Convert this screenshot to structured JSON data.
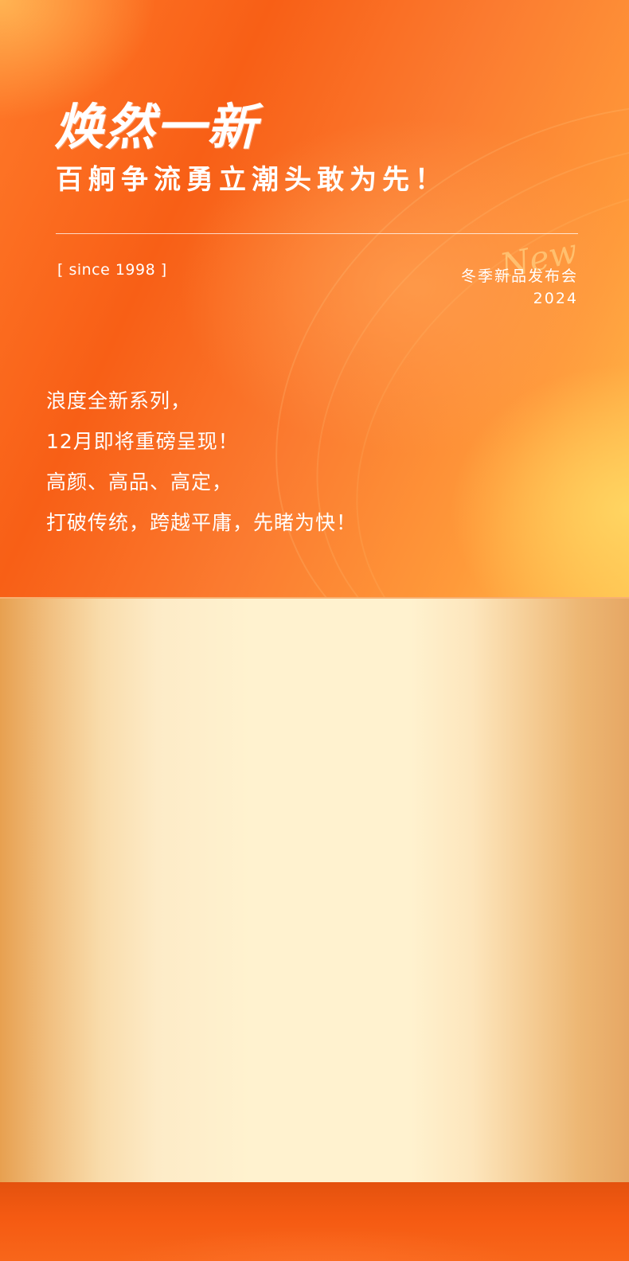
{
  "hero": {
    "title": "焕然一新",
    "subtitle": "百舸争流勇立潮头敢为先！",
    "since": "[ since 1998 ]",
    "event_title": "冬季新品发布会",
    "event_year": "2024",
    "script_mark": "New"
  },
  "body": {
    "lines": [
      "浪度全新系列，",
      "12月即将重磅呈现！",
      "高颜、高品、高定，",
      "打破传统，跨越平庸，先睹为快！"
    ]
  },
  "colors": {
    "primary_orange": "#f85f16",
    "accent_yellow": "#ffc04e",
    "panel_cream": "#fff2cf",
    "panel_gold": "#e7a050"
  }
}
